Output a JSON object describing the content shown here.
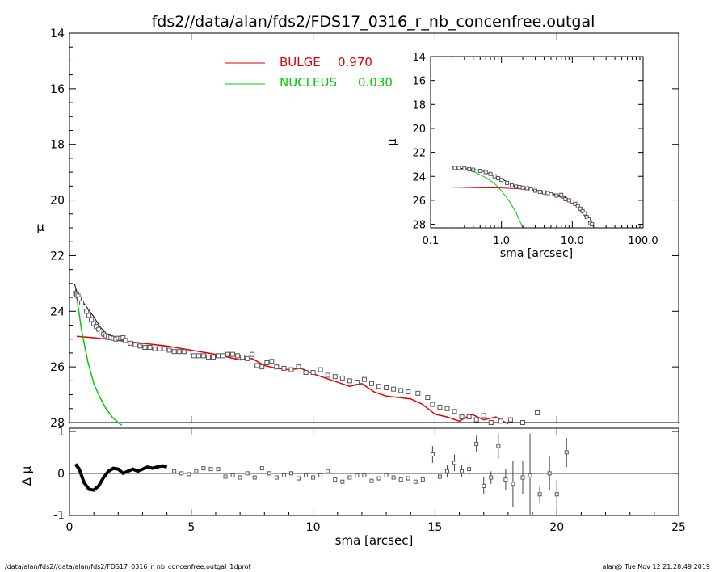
{
  "title": "fds2//data/alan/fds2/FDS17_0316_r_nb_concenfree.outgal",
  "footer": {
    "left": "/data/alan/fds2//data/alan/fds2/FDS17_0316_r_nb_concenfree.outgal_1dprof",
    "right": "alan@  Tue Nov 12 21:28:49 2019"
  },
  "colors": {
    "bulge": "#e00000",
    "nucleus": "#00cc00",
    "data": "#555555",
    "model": "#000000"
  },
  "chart_data": [
    {
      "type": "scatter",
      "ylabel": "μ",
      "xlim": [
        0,
        25
      ],
      "ylim": [
        28,
        14
      ],
      "yticks": [
        "14",
        "16",
        "18",
        "20",
        "22",
        "24",
        "26",
        "28"
      ],
      "legend": [
        {
          "label": "BULGE",
          "value": "0.970",
          "color": "#e00000"
        },
        {
          "label": "NUCLEUS",
          "value": "0.030",
          "color": "#00cc00"
        }
      ],
      "series": [
        {
          "name": "BULGE",
          "kind": "line",
          "color": "#e00000",
          "x": [
            0.3,
            1.0,
            2.0,
            3.0,
            4.0,
            5.0,
            6.0,
            7.0,
            7.5,
            8.0,
            8.5,
            9.0,
            9.5,
            10.0,
            10.5,
            11.0,
            11.5,
            12.0,
            12.5,
            13.0,
            13.5,
            14.0,
            14.5,
            15.0,
            15.5,
            16.0,
            16.5,
            17.0,
            17.5,
            18.0
          ],
          "y": [
            24.9,
            24.95,
            25.05,
            25.15,
            25.25,
            25.4,
            25.55,
            25.75,
            25.7,
            25.95,
            26.05,
            26.1,
            26.05,
            26.25,
            26.4,
            26.55,
            26.7,
            26.6,
            26.9,
            27.05,
            27.1,
            27.15,
            27.35,
            27.7,
            27.8,
            27.95,
            27.7,
            27.9,
            27.8,
            28.05
          ]
        },
        {
          "name": "NUCLEUS",
          "kind": "line",
          "color": "#00cc00",
          "x": [
            0.25,
            0.5,
            0.75,
            1.0,
            1.25,
            1.5,
            1.75,
            2.0,
            2.15
          ],
          "y": [
            23.2,
            24.7,
            25.8,
            26.6,
            27.1,
            27.5,
            27.8,
            28.0,
            28.1
          ]
        },
        {
          "name": "model",
          "kind": "line",
          "color": "#000000",
          "x": [
            0.2,
            0.3,
            0.5,
            0.75,
            1.0,
            1.25,
            1.5,
            1.75,
            2.0
          ],
          "y": [
            23.0,
            23.3,
            23.6,
            23.9,
            24.2,
            24.55,
            24.8,
            24.95,
            25.05
          ]
        },
        {
          "name": "data",
          "kind": "scatter",
          "x": [
            0.25,
            0.3,
            0.35,
            0.4,
            0.5,
            0.6,
            0.7,
            0.8,
            0.9,
            1.0,
            1.1,
            1.2,
            1.3,
            1.4,
            1.5,
            1.6,
            1.7,
            1.8,
            1.9,
            2.0,
            2.1,
            2.2,
            2.3,
            2.5,
            2.7,
            2.9,
            3.1,
            3.3,
            3.5,
            3.7,
            3.9,
            4.1,
            4.3,
            4.5,
            4.7,
            4.9,
            5.1,
            5.3,
            5.5,
            5.7,
            5.9,
            6.1,
            6.3,
            6.5,
            6.7,
            6.9,
            7.1,
            7.3,
            7.5,
            7.7,
            7.9,
            8.1,
            8.3,
            8.5,
            8.8,
            9.1,
            9.4,
            9.7,
            10.0,
            10.3,
            10.6,
            10.9,
            11.2,
            11.5,
            11.8,
            12.1,
            12.4,
            12.7,
            13.0,
            13.3,
            13.6,
            13.9,
            14.3,
            14.7,
            14.9,
            15.2,
            15.5,
            15.8,
            16.1,
            16.4,
            16.7,
            17.0,
            17.3,
            17.7,
            18.1,
            18.6,
            19.2
          ],
          "y": [
            23.35,
            23.4,
            23.45,
            23.55,
            23.7,
            23.85,
            24.0,
            24.15,
            24.3,
            24.45,
            24.55,
            24.65,
            24.75,
            24.82,
            24.88,
            24.92,
            24.95,
            24.97,
            25.0,
            24.97,
            24.97,
            24.95,
            25.05,
            25.15,
            25.2,
            25.25,
            25.3,
            25.3,
            25.35,
            25.35,
            25.35,
            25.4,
            25.45,
            25.45,
            25.45,
            25.5,
            25.6,
            25.6,
            25.6,
            25.65,
            25.65,
            25.6,
            25.6,
            25.55,
            25.55,
            25.6,
            25.65,
            25.7,
            25.55,
            25.95,
            26.0,
            25.85,
            25.8,
            26.0,
            26.05,
            26.1,
            26.0,
            26.2,
            26.2,
            26.1,
            26.3,
            26.35,
            26.4,
            26.5,
            26.55,
            26.45,
            26.6,
            26.7,
            26.75,
            26.8,
            26.85,
            26.9,
            26.95,
            27.1,
            27.35,
            27.45,
            27.5,
            27.6,
            27.8,
            27.8,
            27.9,
            27.75,
            28.0,
            27.95,
            27.9,
            28.0,
            27.65
          ]
        }
      ]
    },
    {
      "type": "scatter",
      "ylabel": "Δ μ",
      "xlabel": "sma [arcsec]",
      "xlim": [
        0,
        25
      ],
      "ylim": [
        -1,
        1
      ],
      "xticks": [
        "0",
        "5",
        "10",
        "15",
        "20",
        "25"
      ],
      "yticks": [
        "1",
        "0",
        "-1"
      ],
      "series": [
        {
          "name": "residual_curve",
          "kind": "line",
          "x": [
            0.25,
            0.4,
            0.6,
            0.8,
            1.0,
            1.2,
            1.4,
            1.6,
            1.8,
            2.0,
            2.2,
            2.4,
            2.6,
            2.8,
            3.0,
            3.2,
            3.4,
            3.6,
            3.8,
            4.0
          ],
          "y": [
            0.22,
            0.1,
            -0.22,
            -0.38,
            -0.4,
            -0.3,
            -0.1,
            0.05,
            0.12,
            0.1,
            0.0,
            0.05,
            0.1,
            0.05,
            0.1,
            0.15,
            0.12,
            0.15,
            0.18,
            0.15
          ]
        },
        {
          "name": "residual_points",
          "kind": "scatter",
          "x": [
            4.3,
            4.6,
            4.9,
            5.2,
            5.5,
            5.8,
            6.1,
            6.4,
            6.7,
            7.0,
            7.3,
            7.6,
            7.9,
            8.2,
            8.5,
            8.8,
            9.1,
            9.4,
            9.7,
            10.0,
            10.3,
            10.6,
            10.9,
            11.2,
            11.5,
            11.8,
            12.1,
            12.4,
            12.7,
            13.0,
            13.3,
            13.6,
            13.9,
            14.2,
            14.5,
            14.9,
            15.2,
            15.5,
            15.8,
            16.1,
            16.4,
            16.7,
            17.0,
            17.3,
            17.6,
            17.9,
            18.2,
            18.6,
            18.9,
            19.3,
            19.7,
            20.0,
            20.4
          ],
          "y": [
            0.05,
            0.0,
            -0.02,
            0.05,
            0.12,
            0.1,
            0.1,
            -0.08,
            -0.05,
            -0.1,
            0.0,
            -0.1,
            0.12,
            0.0,
            -0.1,
            -0.05,
            0.0,
            -0.12,
            -0.05,
            -0.1,
            -0.05,
            0.05,
            -0.15,
            -0.2,
            -0.1,
            -0.05,
            -0.05,
            -0.18,
            -0.12,
            -0.05,
            -0.1,
            -0.15,
            -0.12,
            -0.2,
            -0.15,
            0.45,
            -0.08,
            0.05,
            0.25,
            0.05,
            0.1,
            0.7,
            -0.3,
            -0.1,
            0.65,
            -0.15,
            -0.25,
            -0.1,
            -0.05,
            -0.5,
            0.0,
            -0.5,
            0.5
          ],
          "err": [
            0.05,
            0.05,
            0.05,
            0.05,
            0.05,
            0.05,
            0.05,
            0.05,
            0.05,
            0.05,
            0.05,
            0.05,
            0.05,
            0.05,
            0.05,
            0.05,
            0.05,
            0.05,
            0.05,
            0.05,
            0.05,
            0.05,
            0.05,
            0.05,
            0.05,
            0.05,
            0.05,
            0.05,
            0.05,
            0.05,
            0.05,
            0.05,
            0.05,
            0.05,
            0.05,
            0.2,
            0.1,
            0.15,
            0.2,
            0.15,
            0.15,
            0.2,
            0.2,
            0.15,
            0.3,
            0.25,
            0.55,
            0.4,
            1.0,
            0.2,
            0.4,
            0.35,
            0.35
          ]
        }
      ]
    },
    {
      "type": "scatter",
      "ylabel": "μ",
      "xlabel": "sma [arcsec]",
      "xscale": "log",
      "xlim": [
        0.1,
        100
      ],
      "ylim": [
        28.3,
        14
      ],
      "xticks": [
        "0.1",
        "1.0",
        "10.0",
        "100.0"
      ],
      "yticks": [
        "14",
        "16",
        "18",
        "20",
        "22",
        "24",
        "26",
        "28"
      ],
      "series": [
        {
          "name": "BULGE",
          "kind": "line",
          "color": "#e00000",
          "x": [
            0.2,
            0.5,
            1.0,
            2.0,
            4.0,
            6.0,
            8.0,
            10.0,
            12.0,
            14.0,
            16.0,
            18.0
          ],
          "y": [
            24.9,
            24.95,
            24.97,
            25.05,
            25.3,
            25.6,
            25.9,
            26.2,
            26.6,
            27.1,
            27.5,
            28.0
          ]
        },
        {
          "name": "NUCLEUS",
          "kind": "line",
          "color": "#00cc00",
          "x": [
            0.2,
            0.4,
            0.6,
            0.8,
            1.0,
            1.3,
            1.6,
            2.0
          ],
          "y": [
            23.2,
            23.6,
            24.1,
            24.6,
            25.2,
            26.1,
            27.0,
            28.3
          ]
        },
        {
          "name": "model",
          "kind": "line",
          "color": "#000000",
          "x": [
            0.2,
            0.3,
            0.5,
            0.7,
            1.0,
            1.5,
            2.0,
            3.0,
            5.0,
            8.0,
            12.0,
            16.0,
            18.0
          ],
          "y": [
            23.3,
            23.35,
            23.5,
            23.8,
            24.2,
            24.75,
            25.0,
            25.15,
            25.4,
            25.7,
            26.6,
            27.5,
            28.1
          ]
        },
        {
          "name": "data",
          "kind": "scatter",
          "x": [
            0.22,
            0.25,
            0.3,
            0.35,
            0.4,
            0.5,
            0.6,
            0.7,
            0.8,
            0.9,
            1.0,
            1.2,
            1.4,
            1.6,
            1.8,
            2.0,
            2.3,
            2.6,
            3.0,
            3.5,
            4.0,
            4.5,
            5.0,
            6.0,
            7.0,
            8.0,
            9.0,
            10.0,
            11.0,
            12.0,
            13.0,
            14.0,
            15.0,
            16.0,
            17.0,
            18.0,
            19.0
          ],
          "y": [
            23.3,
            23.3,
            23.35,
            23.4,
            23.45,
            23.55,
            23.65,
            23.8,
            24.0,
            24.15,
            24.3,
            24.55,
            24.75,
            24.85,
            24.9,
            24.95,
            25.0,
            25.1,
            25.2,
            25.3,
            25.35,
            25.4,
            25.5,
            25.6,
            25.55,
            25.9,
            26.0,
            26.1,
            26.3,
            26.5,
            26.7,
            26.9,
            27.1,
            27.4,
            27.6,
            27.9,
            28.0
          ]
        }
      ]
    }
  ]
}
